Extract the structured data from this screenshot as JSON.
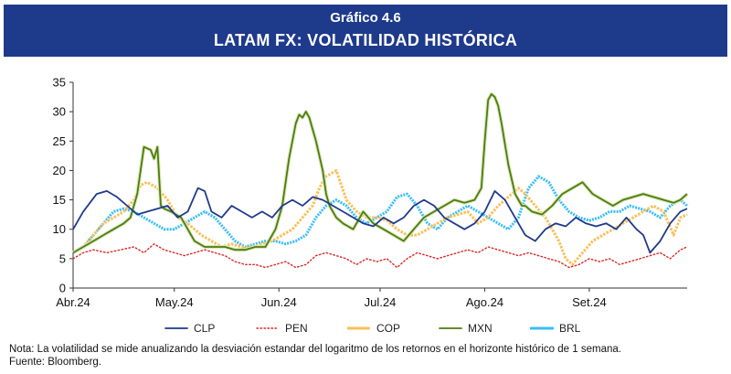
{
  "header": {
    "label": "Gráfico 4.6",
    "title": "LATAM FX: VOLATILIDAD HISTÓRICA"
  },
  "note": "Nota: La volatilidad se mide anualizando la desviación estandar del logaritmo de los retornos en el horizonte histórico de 1 semana.",
  "source": "Fuente: Bloomberg.",
  "chart_data": {
    "type": "line",
    "title": "LATAM FX: VOLATILIDAD HISTÓRICA",
    "xlabel": "",
    "ylabel": "",
    "ylim": [
      0,
      35
    ],
    "xlim": [
      0,
      182
    ],
    "yticks": [
      0,
      5,
      10,
      15,
      20,
      25,
      30,
      35
    ],
    "xticks": [
      {
        "label": "Abr.24",
        "x": 0
      },
      {
        "label": "May.24",
        "x": 30
      },
      {
        "label": "Jun.24",
        "x": 61
      },
      {
        "label": "Jul.24",
        "x": 91
      },
      {
        "label": "Ago.24",
        "x": 122
      },
      {
        "label": "Set.24",
        "x": 153
      }
    ],
    "grid": false,
    "legend_position": "bottom",
    "series": [
      {
        "name": "CLP",
        "color": "#1e3a8a",
        "style": "solid",
        "x": [
          0,
          3,
          7,
          10,
          13,
          16,
          19,
          22,
          25,
          28,
          31,
          34,
          37,
          39,
          41,
          44,
          47,
          50,
          53,
          56,
          59,
          62,
          65,
          68,
          71,
          74,
          77,
          80,
          83,
          86,
          89,
          92,
          95,
          98,
          101,
          104,
          107,
          110,
          113,
          116,
          119,
          122,
          125,
          128,
          131,
          134,
          137,
          140,
          143,
          146,
          149,
          152,
          155,
          158,
          161,
          164,
          167,
          169,
          171,
          174,
          177,
          180,
          182
        ],
        "y": [
          10,
          13,
          16,
          16.5,
          15.5,
          14,
          12.5,
          13,
          13.5,
          14,
          12,
          13,
          17,
          16.5,
          13,
          12,
          14,
          13,
          12,
          13,
          12,
          14,
          15,
          14,
          15.5,
          15,
          14,
          13,
          12,
          11,
          10.5,
          12,
          11,
          12,
          14,
          15,
          14,
          12,
          11,
          10,
          11,
          13,
          16.5,
          15,
          12,
          9,
          8,
          10,
          11,
          10.5,
          12,
          11,
          10.5,
          11,
          10,
          12,
          10,
          9,
          6,
          8,
          11,
          13,
          13.5
        ]
      },
      {
        "name": "PEN",
        "color": "#dc2626",
        "style": "dotted",
        "x": [
          0,
          3,
          6,
          10,
          14,
          18,
          21,
          24,
          27,
          30,
          33,
          36,
          39,
          42,
          45,
          48,
          51,
          54,
          57,
          60,
          63,
          66,
          69,
          72,
          75,
          78,
          81,
          84,
          87,
          90,
          93,
          96,
          99,
          102,
          105,
          108,
          111,
          114,
          117,
          120,
          123,
          126,
          129,
          132,
          135,
          138,
          141,
          144,
          147,
          150,
          153,
          156,
          159,
          162,
          165,
          168,
          171,
          174,
          177,
          180,
          182
        ],
        "y": [
          5,
          6,
          6.5,
          6,
          6.5,
          7,
          6,
          7.5,
          6.5,
          6,
          5.5,
          6,
          6.5,
          6,
          5.5,
          4.5,
          4,
          4,
          3.5,
          4,
          4.5,
          3.5,
          4,
          5.5,
          6,
          5.5,
          5,
          4,
          5,
          4.5,
          5,
          3.5,
          5,
          6,
          5.5,
          5,
          5.5,
          6,
          6.5,
          6,
          7,
          6.5,
          6,
          5.5,
          6,
          5.5,
          5,
          4.5,
          3.5,
          4,
          5,
          4.5,
          5,
          4,
          4.5,
          5,
          5.5,
          6,
          5,
          6.5,
          7
        ]
      },
      {
        "name": "COP",
        "color": "#fbbf57",
        "style": "dashed",
        "x": [
          0,
          3,
          6,
          9,
          12,
          15,
          18,
          20,
          22,
          25,
          28,
          31,
          34,
          36,
          38,
          41,
          44,
          47,
          50,
          53,
          56,
          59,
          62,
          65,
          68,
          71,
          73,
          75,
          78,
          81,
          84,
          87,
          90,
          93,
          96,
          99,
          102,
          105,
          108,
          111,
          114,
          117,
          120,
          123,
          126,
          128,
          130,
          132,
          134,
          137,
          140,
          142,
          144,
          146,
          148,
          151,
          154,
          157,
          160,
          163,
          166,
          169,
          172,
          175,
          178,
          180,
          182
        ],
        "y": [
          6,
          7,
          9,
          11,
          12,
          13,
          15,
          17.5,
          18,
          17,
          15,
          12,
          11,
          10,
          9,
          8,
          7,
          7.5,
          7,
          7,
          7.5,
          8,
          9,
          10,
          12,
          14,
          17,
          19,
          20,
          15,
          13,
          12,
          12,
          11.5,
          10,
          9,
          9,
          10,
          11,
          12,
          12.5,
          13,
          11,
          12,
          14,
          15,
          16,
          17,
          16,
          14,
          12,
          10,
          8,
          5,
          4,
          6,
          8,
          9,
          10,
          11,
          12,
          13,
          14,
          13,
          9,
          12,
          12.5
        ]
      },
      {
        "name": "MXN",
        "color": "#4d7c0f",
        "style": "solid",
        "x": [
          0,
          3,
          6,
          9,
          12,
          15,
          17,
          19,
          21,
          23,
          24,
          25,
          26,
          27,
          29,
          32,
          34,
          36,
          39,
          42,
          45,
          48,
          51,
          54,
          57,
          60,
          62,
          64,
          66,
          67,
          68,
          69,
          70,
          72,
          74,
          75,
          76,
          77,
          78,
          80,
          83,
          86,
          89,
          92,
          95,
          98,
          101,
          104,
          107,
          110,
          113,
          116,
          119,
          121,
          122,
          123,
          124,
          125,
          126,
          127,
          129,
          131,
          133,
          134,
          136,
          139,
          142,
          145,
          148,
          151,
          154,
          157,
          160,
          163,
          166,
          169,
          172,
          175,
          178,
          180,
          182
        ],
        "y": [
          6,
          7,
          8,
          9,
          10,
          11,
          12,
          16,
          24,
          23.5,
          22,
          24,
          14,
          13.5,
          13,
          12,
          10,
          8,
          7,
          7,
          7,
          6.5,
          6.5,
          7,
          7,
          10,
          14,
          22,
          28,
          29.5,
          29,
          30,
          29,
          25,
          20,
          16,
          14,
          13,
          12,
          11,
          10,
          13,
          11,
          10,
          9,
          8,
          10,
          12,
          13,
          14,
          15,
          14.5,
          15,
          17,
          25,
          32,
          33,
          32.5,
          31,
          28,
          21,
          16,
          14,
          14,
          13,
          12.5,
          14,
          16,
          17,
          18,
          16,
          15,
          14,
          15,
          15.5,
          16,
          15.5,
          15,
          14.5,
          15,
          16
        ]
      },
      {
        "name": "BRL",
        "color": "#38bdf8",
        "style": "wavy",
        "x": [
          0,
          3,
          6,
          9,
          12,
          15,
          18,
          21,
          24,
          27,
          30,
          33,
          36,
          39,
          42,
          45,
          48,
          51,
          54,
          57,
          60,
          63,
          66,
          69,
          72,
          75,
          78,
          81,
          84,
          87,
          90,
          93,
          96,
          99,
          102,
          105,
          108,
          111,
          114,
          117,
          120,
          123,
          126,
          129,
          132,
          135,
          138,
          141,
          144,
          147,
          150,
          153,
          156,
          159,
          162,
          165,
          168,
          171,
          174,
          177,
          180,
          182
        ],
        "y": [
          6,
          7,
          9,
          11,
          13,
          13.5,
          13,
          12,
          11,
          10,
          10,
          11,
          12,
          13,
          12,
          10,
          8,
          7,
          7.5,
          8,
          8,
          7.5,
          8,
          9,
          12,
          14,
          15,
          14,
          12,
          11,
          12,
          13,
          15.5,
          16,
          14,
          11,
          10,
          12,
          13,
          14,
          13,
          12,
          11,
          10,
          12,
          17,
          19,
          18,
          15,
          13,
          12,
          11.5,
          12,
          13,
          13,
          14,
          13.5,
          13,
          12,
          14,
          15,
          14
        ]
      }
    ]
  }
}
